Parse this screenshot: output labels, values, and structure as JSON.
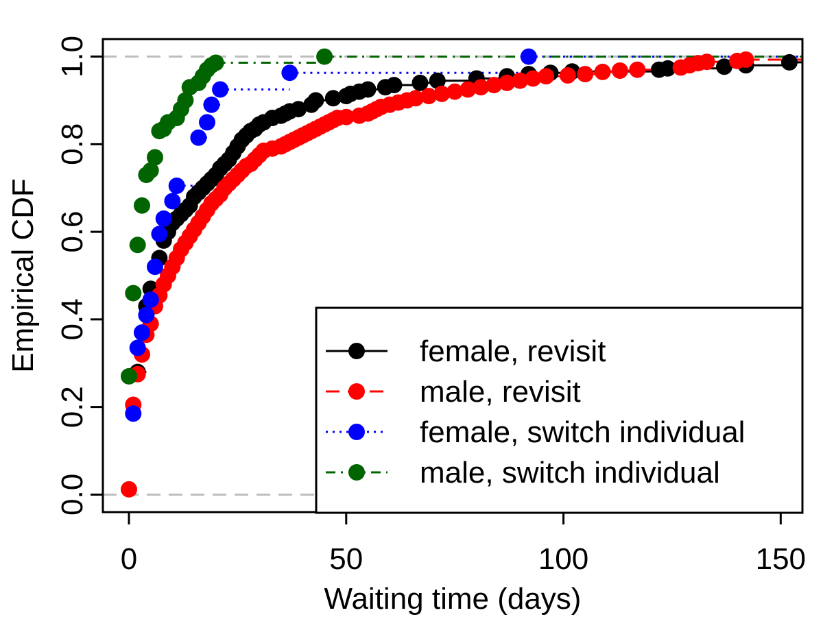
{
  "chart_data": {
    "type": "line",
    "subtype": "empirical-cdf-step",
    "xlabel": "Waiting time (days)",
    "ylabel": "Empirical CDF",
    "xlim": [
      -6,
      155
    ],
    "ylim": [
      -0.04,
      1.04
    ],
    "x_ticks": [
      0,
      50,
      100,
      150
    ],
    "x_tick_labels": [
      "0",
      "50",
      "100",
      "150"
    ],
    "y_ticks": [
      0.0,
      0.2,
      0.4,
      0.6,
      0.8,
      1.0
    ],
    "y_tick_labels": [
      "0.0",
      "0.2",
      "0.4",
      "0.6",
      "0.8",
      "1.0"
    ],
    "reference_lines": [
      0,
      1
    ],
    "reference_line_color": "#bebebe",
    "legend_position": "bottom-right",
    "series": [
      {
        "name": "female, revisit",
        "color": "#000000",
        "line_style": "solid",
        "points": [
          [
            2,
            0.28
          ],
          [
            4,
            0.43
          ],
          [
            5,
            0.47
          ],
          [
            7,
            0.54
          ],
          [
            8,
            0.58
          ],
          [
            9,
            0.6
          ],
          [
            10,
            0.62
          ],
          [
            11,
            0.63
          ],
          [
            12,
            0.64
          ],
          [
            13,
            0.65
          ],
          [
            14,
            0.66
          ],
          [
            15,
            0.68
          ],
          [
            16,
            0.69
          ],
          [
            17,
            0.7
          ],
          [
            18,
            0.71
          ],
          [
            19,
            0.72
          ],
          [
            20,
            0.73
          ],
          [
            21,
            0.745
          ],
          [
            22,
            0.755
          ],
          [
            23,
            0.765
          ],
          [
            24,
            0.78
          ],
          [
            25,
            0.795
          ],
          [
            26,
            0.81
          ],
          [
            27,
            0.82
          ],
          [
            28,
            0.83
          ],
          [
            29,
            0.835
          ],
          [
            30,
            0.845
          ],
          [
            31,
            0.85
          ],
          [
            33,
            0.86
          ],
          [
            35,
            0.865
          ],
          [
            36,
            0.87
          ],
          [
            37,
            0.875
          ],
          [
            39,
            0.88
          ],
          [
            42,
            0.89
          ],
          [
            43,
            0.9
          ],
          [
            47,
            0.905
          ],
          [
            50,
            0.91
          ],
          [
            51,
            0.915
          ],
          [
            53,
            0.92
          ],
          [
            55,
            0.925
          ],
          [
            59,
            0.93
          ],
          [
            61,
            0.935
          ],
          [
            67,
            0.94
          ],
          [
            71,
            0.945
          ],
          [
            80,
            0.95
          ],
          [
            87,
            0.955
          ],
          [
            92,
            0.96
          ],
          [
            97,
            0.963
          ],
          [
            102,
            0.966
          ],
          [
            122,
            0.97
          ],
          [
            124,
            0.973
          ],
          [
            137,
            0.977
          ],
          [
            142,
            0.98
          ],
          [
            152,
            0.987
          ]
        ]
      },
      {
        "name": "male, revisit",
        "color": "#ff0000",
        "line_style": "dashed",
        "points": [
          [
            0,
            0.012
          ],
          [
            1,
            0.205
          ],
          [
            2,
            0.275
          ],
          [
            3,
            0.32
          ],
          [
            4,
            0.365
          ],
          [
            5,
            0.39
          ],
          [
            6,
            0.43
          ],
          [
            7,
            0.455
          ],
          [
            8,
            0.48
          ],
          [
            9,
            0.5
          ],
          [
            10,
            0.52
          ],
          [
            11,
            0.54
          ],
          [
            12,
            0.56
          ],
          [
            13,
            0.575
          ],
          [
            14,
            0.59
          ],
          [
            15,
            0.605
          ],
          [
            16,
            0.62
          ],
          [
            17,
            0.635
          ],
          [
            18,
            0.65
          ],
          [
            19,
            0.665
          ],
          [
            20,
            0.675
          ],
          [
            21,
            0.685
          ],
          [
            22,
            0.7
          ],
          [
            23,
            0.71
          ],
          [
            24,
            0.72
          ],
          [
            25,
            0.73
          ],
          [
            26,
            0.74
          ],
          [
            27,
            0.75
          ],
          [
            28,
            0.755
          ],
          [
            29,
            0.765
          ],
          [
            30,
            0.775
          ],
          [
            31,
            0.785
          ],
          [
            33,
            0.79
          ],
          [
            35,
            0.795
          ],
          [
            36,
            0.8
          ],
          [
            37,
            0.805
          ],
          [
            38,
            0.81
          ],
          [
            39,
            0.815
          ],
          [
            40,
            0.82
          ],
          [
            41,
            0.825
          ],
          [
            42,
            0.83
          ],
          [
            43,
            0.835
          ],
          [
            44,
            0.84
          ],
          [
            45,
            0.845
          ],
          [
            46,
            0.85
          ],
          [
            47,
            0.855
          ],
          [
            48,
            0.86
          ],
          [
            50,
            0.862
          ],
          [
            53,
            0.865
          ],
          [
            55,
            0.87
          ],
          [
            56,
            0.875
          ],
          [
            57,
            0.88
          ],
          [
            58,
            0.885
          ],
          [
            60,
            0.89
          ],
          [
            62,
            0.895
          ],
          [
            64,
            0.9
          ],
          [
            66,
            0.905
          ],
          [
            69,
            0.91
          ],
          [
            72,
            0.915
          ],
          [
            75,
            0.92
          ],
          [
            78,
            0.925
          ],
          [
            81,
            0.93
          ],
          [
            84,
            0.935
          ],
          [
            87,
            0.94
          ],
          [
            90,
            0.945
          ],
          [
            93,
            0.95
          ],
          [
            96,
            0.955
          ],
          [
            101,
            0.957
          ],
          [
            105,
            0.96
          ],
          [
            109,
            0.965
          ],
          [
            113,
            0.968
          ],
          [
            117,
            0.97
          ],
          [
            127,
            0.975
          ],
          [
            129,
            0.98
          ],
          [
            131,
            0.985
          ],
          [
            133,
            0.988
          ],
          [
            140,
            0.99
          ],
          [
            142,
            0.993
          ]
        ]
      },
      {
        "name": "female, switch individual",
        "color": "#0000ff",
        "line_style": "dotted",
        "points": [
          [
            1,
            0.185
          ],
          [
            2,
            0.335
          ],
          [
            3,
            0.37
          ],
          [
            4,
            0.41
          ],
          [
            5,
            0.445
          ],
          [
            6,
            0.52
          ],
          [
            7,
            0.595
          ],
          [
            8,
            0.63
          ],
          [
            10,
            0.67
          ],
          [
            11,
            0.705
          ],
          [
            16,
            0.815
          ],
          [
            18,
            0.85
          ],
          [
            19,
            0.89
          ],
          [
            21,
            0.925
          ],
          [
            37,
            0.963
          ],
          [
            92,
            1.0
          ]
        ]
      },
      {
        "name": "male, switch individual",
        "color": "#006400",
        "line_style": "dashdot",
        "points": [
          [
            0,
            0.27
          ],
          [
            1,
            0.46
          ],
          [
            2,
            0.57
          ],
          [
            3,
            0.66
          ],
          [
            4,
            0.73
          ],
          [
            5,
            0.74
          ],
          [
            6,
            0.77
          ],
          [
            7,
            0.83
          ],
          [
            8,
            0.835
          ],
          [
            9,
            0.85
          ],
          [
            11,
            0.86
          ],
          [
            12,
            0.88
          ],
          [
            13,
            0.9
          ],
          [
            14,
            0.93
          ],
          [
            16,
            0.94
          ],
          [
            17,
            0.955
          ],
          [
            18,
            0.97
          ],
          [
            19,
            0.98
          ],
          [
            20,
            0.986
          ],
          [
            45,
            1.0
          ]
        ]
      }
    ]
  }
}
